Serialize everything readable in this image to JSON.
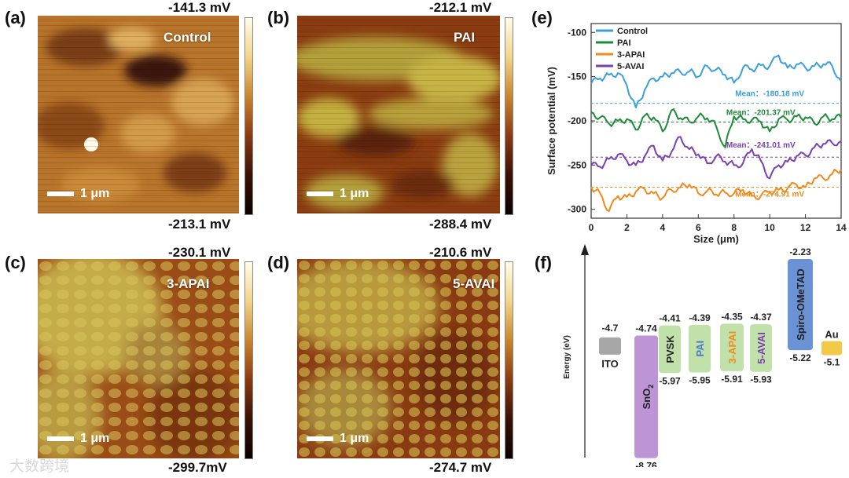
{
  "panels": {
    "a": {
      "label": "(a)",
      "name": "Control",
      "max": "-141.3 mV",
      "min": "-213.1 mV",
      "scale": "1 μm"
    },
    "b": {
      "label": "(b)",
      "name": "PAI",
      "max": "-212.1 mV",
      "min": "-288.4 mV",
      "scale": "1 μm"
    },
    "c": {
      "label": "(c)",
      "name": "3-APAI",
      "max": "-230.1 mV",
      "min": "-299.7mV",
      "scale": "1 μm"
    },
    "d": {
      "label": "(d)",
      "name": "5-AVAI",
      "max": "-210.6 mV",
      "min": "-274.7 mV",
      "scale": "1 μm"
    },
    "e": {
      "label": "(e)"
    },
    "f": {
      "label": "(f)"
    }
  },
  "watermark": "大数跨境",
  "chart_data": [
    {
      "type": "line",
      "panel": "e",
      "xlabel": "Size (μm)",
      "ylabel": "Surface potential (mV)",
      "xlim": [
        0,
        14
      ],
      "ylim": [
        -310,
        -90
      ],
      "xticks": [
        0,
        2,
        4,
        6,
        8,
        10,
        12,
        14
      ],
      "yticks": [
        -100,
        -150,
        -200,
        -250,
        -300
      ],
      "x": [
        0,
        0.5,
        1,
        1.5,
        2,
        2.5,
        3,
        3.5,
        4,
        4.5,
        5,
        5.5,
        6,
        6.5,
        7,
        7.5,
        8,
        8.5,
        9,
        9.5,
        10,
        10.5,
        11,
        11.5,
        12,
        12.5,
        13,
        13.5,
        14
      ],
      "series": [
        {
          "name": "Control",
          "color": "#3aa0db",
          "mean": -180.18,
          "mean_label": "Mean：-180.18 mV",
          "values": [
            -158,
            -152,
            -148,
            -146,
            -160,
            -185,
            -165,
            -152,
            -150,
            -146,
            -145,
            -144,
            -150,
            -138,
            -142,
            -148,
            -157,
            -140,
            -142,
            -137,
            -138,
            -126,
            -140,
            -136,
            -140,
            -138,
            -136,
            -138,
            -155
          ]
        },
        {
          "name": "PAI",
          "color": "#1f8a3a",
          "mean": -201.37,
          "mean_label": "Mean：-201.37 mV",
          "values": [
            -190,
            -196,
            -203,
            -200,
            -198,
            -210,
            -194,
            -196,
            -212,
            -188,
            -197,
            -201,
            -195,
            -197,
            -206,
            -230,
            -195,
            -198,
            -199,
            -201,
            -212,
            -198,
            -199,
            -195,
            -196,
            -203,
            -195,
            -198,
            -196
          ]
        },
        {
          "name": "3-APAI",
          "color": "#f08a1c",
          "mean": -274.91,
          "mean_label": "Mean：-274.91 mV",
          "values": [
            -275,
            -282,
            -302,
            -285,
            -286,
            -280,
            -277,
            -282,
            -287,
            -278,
            -275,
            -272,
            -282,
            -279,
            -283,
            -281,
            -282,
            -278,
            -285,
            -285,
            -280,
            -278,
            -276,
            -272,
            -275,
            -265,
            -265,
            -260,
            -255
          ]
        },
        {
          "name": "5-AVAI",
          "color": "#7a3fb0",
          "mean": -241.01,
          "mean_label": "Mean：-241.01 mV",
          "values": [
            -250,
            -252,
            -243,
            -238,
            -245,
            -250,
            -240,
            -228,
            -245,
            -235,
            -218,
            -232,
            -238,
            -248,
            -240,
            -246,
            -250,
            -248,
            -232,
            -245,
            -265,
            -250,
            -246,
            -240,
            -239,
            -230,
            -226,
            -225,
            -223
          ]
        }
      ]
    },
    {
      "type": "bar",
      "panel": "f",
      "ylabel": "Energy (eV)",
      "items": [
        {
          "name": "ITO",
          "top": -4.7,
          "bottom": null,
          "top_label": "-4.7",
          "bottom_label": "",
          "color": "#a7a7a7"
        },
        {
          "name": "SnO2",
          "top": -4.74,
          "bottom": -8.76,
          "top_label": "-4.74",
          "bottom_label": "-8.76",
          "color": "#b68ad2"
        },
        {
          "name": "PVSK",
          "top": -4.41,
          "bottom": -5.97,
          "top_label": "-4.41",
          "bottom_label": "-5.97",
          "color": "#b9dea0"
        },
        {
          "name": "PAI",
          "top": -4.39,
          "bottom": -5.95,
          "top_label": "-4.39",
          "bottom_label": "-5.95",
          "color": "#b9dea0"
        },
        {
          "name": "3-APAI",
          "top": -4.35,
          "bottom": -5.91,
          "top_label": "-4.35",
          "bottom_label": "-5.91",
          "color": "#b9dea0"
        },
        {
          "name": "5-AVAI",
          "top": -4.37,
          "bottom": -5.93,
          "top_label": "-4.37",
          "bottom_label": "-5.93",
          "color": "#b9dea0"
        },
        {
          "name": "Spiro-OMeTAD",
          "top": -2.23,
          "bottom": -5.22,
          "top_label": "-2.23",
          "bottom_label": "-5.22",
          "color": "#5b86cf"
        },
        {
          "name": "Au",
          "top": -5.1,
          "bottom": null,
          "top_label": "Au",
          "bottom_label": "-5.1",
          "color": "#f3c94a"
        }
      ]
    }
  ]
}
